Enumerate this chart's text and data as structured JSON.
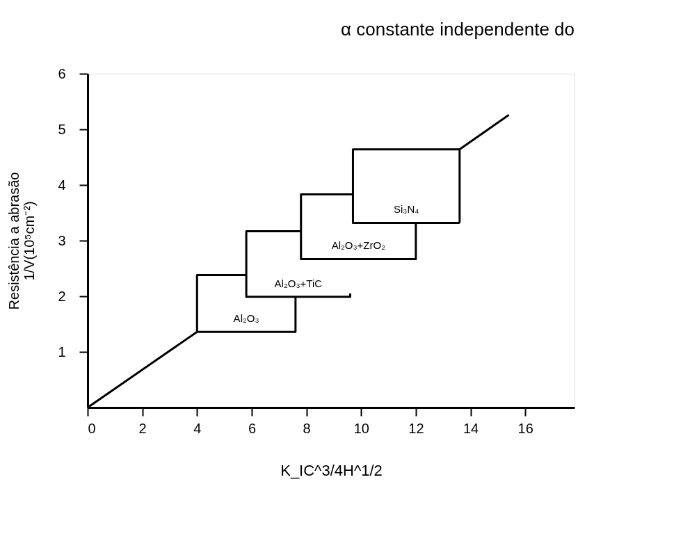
{
  "chart_data": {
    "type": "line",
    "title": "α constante independente do",
    "xlabel": "K_IC^3/4H^1/2",
    "ylabel": "Resistência a abrasão\n1/V(10⁵cm⁻²)",
    "xlim": [
      0,
      17.8
    ],
    "ylim": [
      0,
      6
    ],
    "xticks": [
      0,
      2,
      4,
      6,
      8,
      10,
      12,
      14,
      16
    ],
    "yticks": [
      1,
      2,
      3,
      4,
      5,
      6
    ],
    "grid": false,
    "marker": "none",
    "line_style": "solid",
    "series": [
      {
        "color": "#000000",
        "x": [
          0,
          4.0
        ],
        "values": [
          0,
          1.36
        ]
      },
      {
        "color": "#000000",
        "x": [
          13.6,
          13.6,
          15.4
        ],
        "values": [
          3.32,
          4.64,
          5.26
        ]
      },
      {
        "name": "Al₂O₃",
        "color": "#000000",
        "x": [
          5.8,
          4.0,
          4.0,
          7.6,
          7.6
        ],
        "values": [
          2.38,
          2.38,
          1.36,
          1.36,
          2.0
        ]
      },
      {
        "name": "Al₂O₃+TiC",
        "color": "#000000",
        "x": [
          7.8,
          5.8,
          5.8,
          9.6,
          9.6
        ],
        "values": [
          3.17,
          3.17,
          1.99,
          1.99,
          2.05
        ]
      },
      {
        "name": "Al₂O₃+ZrO₂",
        "color": "#000000",
        "x": [
          9.7,
          7.8,
          7.8,
          12.0,
          12.0
        ],
        "values": [
          3.83,
          3.83,
          2.67,
          2.67,
          3.32
        ]
      },
      {
        "name": "Si₃N₄",
        "color": "#000000",
        "x": [
          13.6,
          9.7,
          9.7,
          13.6
        ],
        "values": [
          4.64,
          4.64,
          3.32,
          3.32
        ]
      }
    ]
  }
}
